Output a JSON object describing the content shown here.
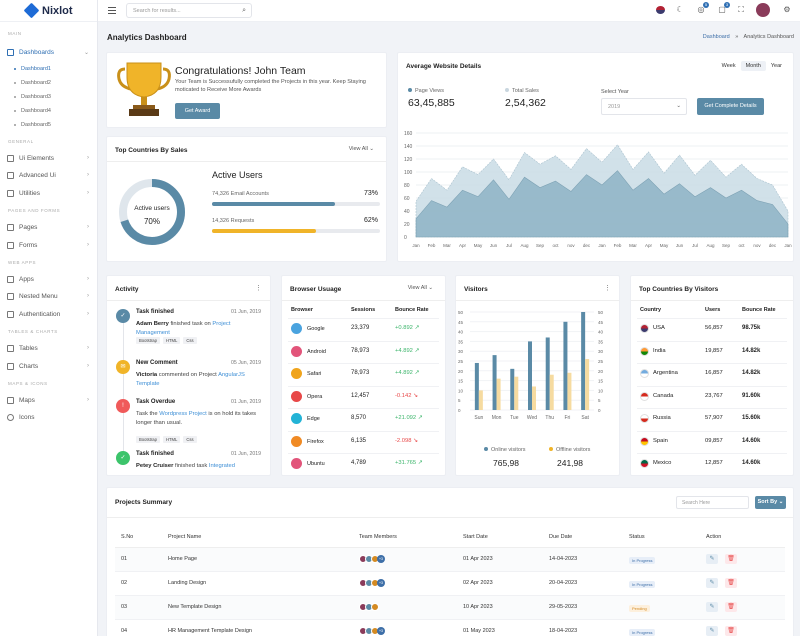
{
  "brand": "Nixlot",
  "search_placeholder": "Search for results...",
  "badges": {
    "notif": "5",
    "cart": "3"
  },
  "sidebar": {
    "main": "MAIN",
    "dashboards": "Dashboards",
    "subs": [
      "Dashboard1",
      "Dashboard2",
      "Dashboard3",
      "Dashboard4",
      "Dashboard5"
    ],
    "general": "GENERAL",
    "ui": "Ui Elements",
    "adv": "Advanced Ui",
    "util": "Utilities",
    "pages_forms": "PAGES AND FORMS",
    "pages": "Pages",
    "forms": "Forms",
    "web_apps": "WEB APPS",
    "apps": "Apps",
    "nested": "Nested Menu",
    "auth": "Authentication",
    "tables_charts": "TABLES & CHARTS",
    "tables": "Tables",
    "charts": "Charts",
    "maps_icons": "MAPS & ICONS",
    "maps": "Maps",
    "icons": "Icons"
  },
  "page": {
    "title": "Analytics Dashboard",
    "bc_home": "Dashboard",
    "bc_sep": "»",
    "bc_current": "Analytics Dashboard"
  },
  "congrats": {
    "title": "Congratulations! John Team",
    "text": "Your Team is Successufully completed the Projects in this year. Keep Staying moticated to Receive More Awards",
    "btn": "Get Award"
  },
  "website": {
    "title": "Average Website Details",
    "tabs": [
      "Week",
      "Month",
      "Year"
    ],
    "pv_label": "Page Views",
    "pv": "63,45,885",
    "ts_label": "Total Sales",
    "ts": "2,54,362",
    "year_label": "Select Year",
    "year": "2019",
    "btn": "Get Complete Details",
    "chart_data": {
      "type": "area",
      "x": [
        "Jan",
        "Feb",
        "Mar",
        "Apr",
        "May",
        "Jun",
        "Jul",
        "Aug",
        "Sep",
        "oct",
        "nov",
        "dec",
        "Jan",
        "Feb",
        "Mar",
        "Apr",
        "May",
        "Jun",
        "Jul",
        "Aug",
        "Sep",
        "oct",
        "nov",
        "dec",
        "Jan"
      ],
      "ylim": [
        0,
        160
      ],
      "yticks": [
        0,
        20,
        40,
        60,
        80,
        100,
        120,
        140,
        160
      ],
      "series": [
        {
          "values": [
            55,
            90,
            72,
            108,
            96,
            120,
            88,
            130,
            112,
            125,
            104,
            136,
            115,
            142,
            104,
            131,
            98,
            126,
            95,
            118,
            92,
            112,
            90,
            80,
            40
          ],
          "color": "#c9dce6"
        },
        {
          "values": [
            28,
            56,
            46,
            72,
            62,
            88,
            58,
            92,
            76,
            86,
            70,
            96,
            80,
            102,
            72,
            90,
            66,
            82,
            62,
            76,
            60,
            72,
            56,
            50,
            20
          ],
          "color": "#8fb4c6"
        }
      ]
    }
  },
  "countries": {
    "title": "Top Countries By Sales",
    "view": "View All",
    "donut_label": "Active users",
    "donut_pct": "70%",
    "donut_value": 70,
    "active": "Active Users",
    "email_num": "74,326",
    "email_label": "Email Accounts",
    "email_pct": "73%",
    "email_value": 73,
    "req_num": "14,326",
    "req_label": "Requests",
    "req_pct": "62%",
    "req_value": 62
  },
  "activity": {
    "title": "Activity",
    "items": [
      {
        "title": "Task finished",
        "date": "01 Jun, 2019",
        "who": "Adam Berry",
        "mid": " finished task on ",
        "link": "Project Management",
        "tags": [
          "Bootstrap",
          "HTML",
          "Css"
        ],
        "color": "#5a8aa6"
      },
      {
        "title": "New Comment",
        "date": "05 Jun, 2019",
        "who": "Victoria",
        "mid": " commented on Project ",
        "link": "AngularJS Template",
        "tags": [],
        "color": "#f0b429"
      },
      {
        "title": "Task Overdue",
        "date": "01 Jun, 2019",
        "pre": "Task the ",
        "link": "Wordpress Project",
        "post": " is on hold its takes longer than usual.",
        "tags": [
          "Bootstrap",
          "HTML",
          "Css"
        ],
        "color": "#f05a5a"
      },
      {
        "title": "Task finished",
        "date": "01 Jun, 2019",
        "who": "Petey Cruiser",
        "mid": " finished task ",
        "link": "Integrated",
        "tags": [],
        "color": "#3cc46b"
      }
    ]
  },
  "browser": {
    "title": "Browser Usuage",
    "view": "View All",
    "cols": [
      "Browser",
      "Sessions",
      "Bounce Rate"
    ],
    "rows": [
      {
        "name": "Google",
        "s": "23,379",
        "b": "+0.892",
        "up": true,
        "c": "#4aa3df"
      },
      {
        "name": "Android",
        "s": "78,973",
        "b": "+4.892",
        "up": true,
        "c": "#e2547a"
      },
      {
        "name": "Safari",
        "s": "78,973",
        "b": "+4.892",
        "up": true,
        "c": "#f0a41c"
      },
      {
        "name": "Opera",
        "s": "12,457",
        "b": "-0.142",
        "up": false,
        "c": "#e84848"
      },
      {
        "name": "Edge",
        "s": "8,570",
        "b": "+21.092",
        "up": true,
        "c": "#23b3d6"
      },
      {
        "name": "Firefox",
        "s": "6,135",
        "b": "-2.098",
        "up": false,
        "c": "#f08a24"
      },
      {
        "name": "Ubuntu",
        "s": "4,789",
        "b": "+31.765",
        "up": true,
        "c": "#e2547a"
      }
    ]
  },
  "visitors": {
    "title": "Visitors",
    "online_label": "Online visitors",
    "online": "765,98",
    "offline_label": "Offline visitors",
    "offline": "241,98",
    "chart_data": {
      "type": "bar",
      "categories": [
        "Sun",
        "Mon",
        "Tue",
        "Wed",
        "Thu",
        "Fri",
        "Sat"
      ],
      "ylim": [
        0,
        50
      ],
      "yticks": [
        0,
        5,
        10,
        15,
        20,
        25,
        30,
        35,
        40,
        45,
        50
      ],
      "series": [
        {
          "name": "Online visitors",
          "values": [
            24,
            28,
            21,
            35,
            37,
            45,
            50
          ],
          "color": "#5a8aa6"
        },
        {
          "name": "Offline visitors",
          "values": [
            10,
            16,
            17,
            12,
            18,
            19,
            26
          ],
          "color": "#f6dba0"
        }
      ]
    }
  },
  "tcv": {
    "title": "Top Countries By Visitors",
    "cols": [
      "Country",
      "Users",
      "Bounce Rate"
    ],
    "rows": [
      {
        "c": "USA",
        "u": "56,857",
        "b": "98.75k",
        "f1": "#b22234",
        "f2": "#3c3b6e"
      },
      {
        "c": "India",
        "u": "19,857",
        "b": "14.82k",
        "f1": "#ff9933",
        "f2": "#138808"
      },
      {
        "c": "Argentina",
        "u": "16,857",
        "b": "14.82k",
        "f1": "#74acdf",
        "f2": "#ffffff"
      },
      {
        "c": "Canada",
        "u": "23,767",
        "b": "91.60k",
        "f1": "#d52b1e",
        "f2": "#ffffff"
      },
      {
        "c": "Russia",
        "u": "57,907",
        "b": "15.60k",
        "f1": "#ffffff",
        "f2": "#d52b1e"
      },
      {
        "c": "Spain",
        "u": "09,857",
        "b": "14.60k",
        "f1": "#c60b1e",
        "f2": "#ffc400"
      },
      {
        "c": "Mexico",
        "u": "12,857",
        "b": "14.60k",
        "f1": "#006847",
        "f2": "#ce1126"
      }
    ]
  },
  "projects": {
    "title": "Projects Summary",
    "search": "Search Here",
    "sort": "Sort By",
    "cols": [
      "S.No",
      "Project Name",
      "Team Members",
      "Start Date",
      "Due Date",
      "Status",
      "Action"
    ],
    "rows": [
      {
        "n": "01",
        "p": "Home Page",
        "m": "+3",
        "s": "01 Apr 2023",
        "d": "14-04-2023",
        "st": "In Progress",
        "pen": false
      },
      {
        "n": "02",
        "p": "Landing Design",
        "m": "+3",
        "s": "02 Apr 2023",
        "d": "20-04-2023",
        "st": "In Progress",
        "pen": false
      },
      {
        "n": "03",
        "p": "New Template Design",
        "m": "",
        "s": "10 Apr 2023",
        "d": "29-05-2023",
        "st": "Pending",
        "pen": true
      },
      {
        "n": "04",
        "p": "HR Management Template Design",
        "m": "+3",
        "s": "01 May 2023",
        "d": "18-04-2023",
        "st": "In Progress",
        "pen": false
      }
    ]
  }
}
